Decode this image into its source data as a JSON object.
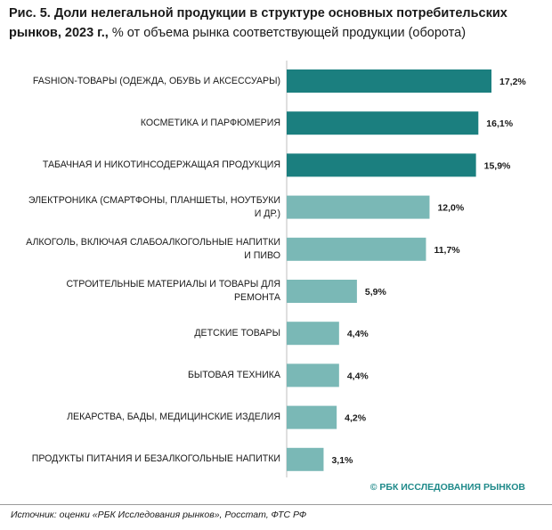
{
  "title": {
    "bold": "Рис. 5. Доли нелегальной продукции в структуре основных потребительских рынков, 2023 г.,",
    "normal": " % от объема рынка соответствующей продукции (оборота)"
  },
  "chart_data": {
    "type": "bar",
    "orientation": "horizontal",
    "categories": [
      "FASHION-ТОВАРЫ (ОДЕЖДА, ОБУВЬ И АКСЕССУАРЫ)",
      "КОСМЕТИКА И ПАРФЮМЕРИЯ",
      "ТАБАЧНАЯ И НИКОТИНСОДЕРЖАЩАЯ ПРОДУКЦИЯ",
      "ЭЛЕКТРОНИКА (СМАРТФОНЫ, ПЛАНШЕТЫ, НОУТБУКИ И ДР.)",
      "АЛКОГОЛЬ, ВКЛЮЧАЯ СЛАБОАЛКОГОЛЬНЫЕ НАПИТКИ И ПИВО",
      "СТРОИТЕЛЬНЫЕ МАТЕРИАЛЫ И ТОВАРЫ ДЛЯ РЕМОНТА",
      "ДЕТСКИЕ ТОВАРЫ",
      "БЫТОВАЯ ТЕХНИКА",
      "ЛЕКАРСТВА, БАДЫ, МЕДИЦИНСКИЕ ИЗДЕЛИЯ",
      "ПРОДУКТЫ ПИТАНИЯ И БЕЗАЛКОГОЛЬНЫЕ НАПИТКИ"
    ],
    "values": [
      17.2,
      16.1,
      15.9,
      12.0,
      11.7,
      5.9,
      4.4,
      4.4,
      4.2,
      3.1
    ],
    "value_labels": [
      "17,2%",
      "16,1%",
      "15,9%",
      "12,0%",
      "11,7%",
      "5,9%",
      "4,4%",
      "4,4%",
      "4,2%",
      "3,1%"
    ],
    "bar_colors": [
      "#1b7f7f",
      "#1b7f7f",
      "#1b7f7f",
      "#7ab8b6",
      "#7ab8b6",
      "#7ab8b6",
      "#7ab8b6",
      "#7ab8b6",
      "#7ab8b6",
      "#7ab8b6"
    ],
    "axis_color": "#bfbfbf",
    "xlim": [
      0,
      17.2
    ],
    "grid": false
  },
  "copyright": "© РБК ИССЛЕДОВАНИЯ РЫНКОВ",
  "source": "Источник: оценки «РБК Исследования рынков», Росстат, ФТС РФ"
}
